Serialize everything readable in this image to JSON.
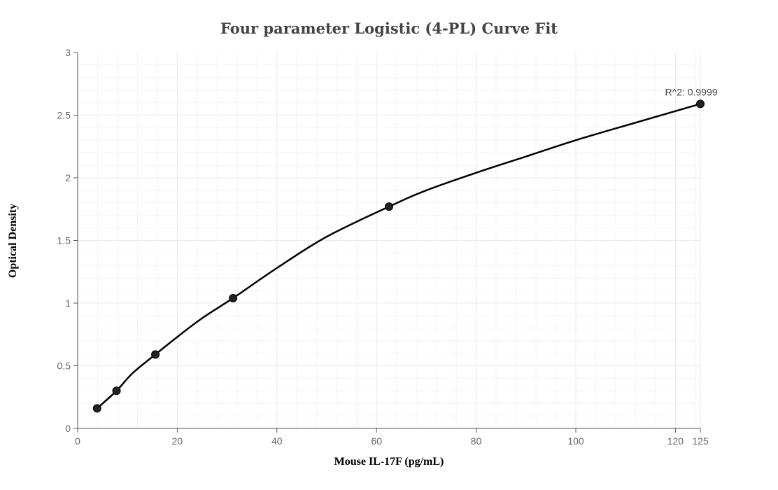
{
  "chart_data": {
    "type": "scatter",
    "title": "Four parameter Logistic (4-PL) Curve Fit",
    "xlabel": "Mouse IL-17F (pg/mL)",
    "ylabel": "Optical Density",
    "xlim": [
      0,
      125
    ],
    "ylim": [
      0,
      3
    ],
    "x_ticks": [
      0,
      20,
      40,
      60,
      80,
      100,
      120,
      125
    ],
    "y_ticks": [
      0,
      0.5,
      1,
      1.5,
      2,
      2.5,
      3
    ],
    "grid": true,
    "points": [
      {
        "x": 3.9,
        "y": 0.16
      },
      {
        "x": 7.8,
        "y": 0.3
      },
      {
        "x": 15.6,
        "y": 0.59
      },
      {
        "x": 31.2,
        "y": 1.04
      },
      {
        "x": 62.5,
        "y": 1.77
      },
      {
        "x": 125,
        "y": 2.59
      }
    ],
    "fit_curve": [
      {
        "x": 3.9,
        "y": 0.16
      },
      {
        "x": 7.8,
        "y": 0.3
      },
      {
        "x": 11,
        "y": 0.44
      },
      {
        "x": 15.6,
        "y": 0.59
      },
      {
        "x": 20,
        "y": 0.73
      },
      {
        "x": 25,
        "y": 0.88
      },
      {
        "x": 31.2,
        "y": 1.04
      },
      {
        "x": 40,
        "y": 1.28
      },
      {
        "x": 50,
        "y": 1.53
      },
      {
        "x": 62.5,
        "y": 1.77
      },
      {
        "x": 70,
        "y": 1.9
      },
      {
        "x": 80,
        "y": 2.04
      },
      {
        "x": 90,
        "y": 2.17
      },
      {
        "x": 100,
        "y": 2.3
      },
      {
        "x": 112,
        "y": 2.44
      },
      {
        "x": 125,
        "y": 2.59
      }
    ],
    "annotation": "R^2: 0.9999",
    "colors": {
      "curve": "#000000",
      "points": "#222222",
      "grid": "#e6e9ee",
      "axis": "#555555"
    }
  }
}
